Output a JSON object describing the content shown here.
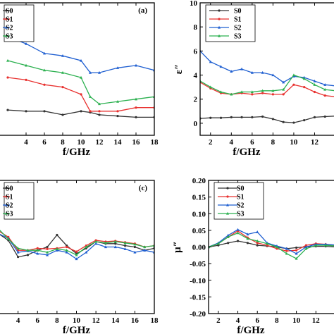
{
  "colors": {
    "S0": "#333333",
    "S1": "#e8312f",
    "S2": "#1f5fd1",
    "S3": "#2bb04f"
  },
  "chart_data": [
    {
      "id": "a",
      "type": "line",
      "panel_label": "(a)",
      "xlabel": "f/GHz",
      "ylabel": "",
      "xlim": [
        1,
        18
      ],
      "ylim": [
        4,
        9.5
      ],
      "xticks": [
        4,
        6,
        8,
        10,
        12,
        14,
        16,
        18
      ],
      "yticks": [],
      "legend_position": "top-left",
      "series": [
        {
          "name": "S0",
          "x": [
            2,
            4,
            6,
            8,
            10,
            11,
            12,
            14,
            16,
            18
          ],
          "y": [
            5.05,
            5.0,
            5.0,
            4.85,
            5.0,
            4.95,
            4.85,
            4.8,
            4.75,
            4.75
          ]
        },
        {
          "name": "S1",
          "x": [
            2,
            4,
            6,
            8,
            10,
            11,
            12,
            14,
            16,
            18
          ],
          "y": [
            6.4,
            6.3,
            6.1,
            6.0,
            5.7,
            5.0,
            5.0,
            5.0,
            5.15,
            5.15
          ]
        },
        {
          "name": "S2",
          "x": [
            2,
            4,
            6,
            8,
            10,
            11,
            12,
            14,
            16,
            18
          ],
          "y": [
            8.1,
            7.8,
            7.4,
            7.3,
            7.1,
            6.6,
            6.6,
            6.8,
            6.9,
            6.7
          ]
        },
        {
          "name": "S3",
          "x": [
            2,
            4,
            6,
            8,
            10,
            11,
            12,
            14,
            16,
            18
          ],
          "y": [
            7.1,
            6.9,
            6.7,
            6.6,
            6.4,
            5.6,
            5.3,
            5.4,
            5.5,
            5.6
          ]
        }
      ]
    },
    {
      "id": "b",
      "type": "line",
      "panel_label": "",
      "xlabel": "f/GHz",
      "ylabel": "ε″",
      "xlim": [
        1,
        14
      ],
      "ylim": [
        -1,
        10
      ],
      "xticks": [
        2,
        4,
        6,
        8,
        10,
        12
      ],
      "yticks": [
        0,
        2,
        4,
        6,
        8,
        10
      ],
      "legend_position": "top-left",
      "series": [
        {
          "name": "S0",
          "x": [
            1,
            2,
            3,
            4,
            5,
            6,
            7,
            8,
            9,
            10,
            11,
            12,
            13,
            14
          ],
          "y": [
            0.4,
            0.45,
            0.45,
            0.5,
            0.5,
            0.5,
            0.55,
            0.35,
            0.1,
            0.05,
            0.25,
            0.5,
            0.55,
            0.6
          ]
        },
        {
          "name": "S1",
          "x": [
            1,
            2,
            3,
            4,
            5,
            6,
            7,
            8,
            9,
            10,
            11,
            12,
            13,
            14
          ],
          "y": [
            3.4,
            2.9,
            2.5,
            2.4,
            2.5,
            2.4,
            2.5,
            2.4,
            2.4,
            3.2,
            3.0,
            2.6,
            2.3,
            2.2
          ]
        },
        {
          "name": "S2",
          "x": [
            1,
            2,
            3,
            4,
            5,
            6,
            7,
            8,
            9,
            10,
            11,
            12,
            13,
            14
          ],
          "y": [
            6.0,
            5.1,
            4.7,
            4.3,
            4.5,
            4.2,
            4.2,
            4.0,
            3.4,
            3.9,
            3.8,
            3.5,
            3.2,
            3.1
          ]
        },
        {
          "name": "S3",
          "x": [
            1,
            2,
            3,
            4,
            5,
            6,
            7,
            8,
            9,
            10,
            11,
            12,
            13,
            14
          ],
          "y": [
            3.5,
            3.0,
            2.6,
            2.4,
            2.6,
            2.6,
            2.7,
            2.7,
            2.8,
            4.0,
            3.7,
            3.2,
            2.8,
            2.7
          ]
        }
      ]
    },
    {
      "id": "c",
      "type": "line",
      "panel_label": "(c)",
      "xlabel": "f/GHz",
      "ylabel": "",
      "xlim": [
        2,
        18
      ],
      "ylim": [
        -1,
        1
      ],
      "xticks": [
        4,
        6,
        8,
        10,
        12,
        14,
        16,
        18
      ],
      "yticks": [],
      "legend_position": "top-left",
      "series": [
        {
          "name": "S0",
          "x": [
            2,
            3,
            4,
            5,
            6,
            7,
            8,
            9,
            10,
            11,
            12,
            13,
            14,
            15,
            16,
            17,
            18
          ],
          "y": [
            0.2,
            0.1,
            -0.15,
            -0.12,
            -0.05,
            0.0,
            0.18,
            0.02,
            -0.1,
            -0.02,
            0.08,
            0.05,
            0.05,
            0.02,
            0.0,
            -0.05,
            -0.02
          ]
        },
        {
          "name": "S1",
          "x": [
            2,
            3,
            4,
            5,
            6,
            7,
            8,
            9,
            10,
            11,
            12,
            13,
            14,
            15,
            16,
            17,
            18
          ],
          "y": [
            0.24,
            0.15,
            -0.05,
            -0.05,
            -0.02,
            -0.03,
            -0.02,
            0.0,
            -0.07,
            0.02,
            0.1,
            0.08,
            0.09,
            0.07,
            0.05,
            0.0,
            0.02
          ]
        },
        {
          "name": "S2",
          "x": [
            2,
            3,
            4,
            5,
            6,
            7,
            8,
            9,
            10,
            11,
            12,
            13,
            14,
            15,
            16,
            17,
            18
          ],
          "y": [
            0.2,
            0.13,
            -0.08,
            -0.06,
            -0.1,
            -0.12,
            -0.05,
            -0.08,
            -0.18,
            -0.08,
            0.05,
            0.0,
            0.0,
            -0.03,
            -0.08,
            -0.05,
            -0.08
          ]
        },
        {
          "name": "S3",
          "x": [
            2,
            3,
            4,
            5,
            6,
            7,
            8,
            9,
            10,
            11,
            12,
            13,
            14,
            15,
            16,
            17,
            18
          ],
          "y": [
            0.27,
            0.12,
            -0.02,
            -0.05,
            -0.05,
            -0.08,
            -0.03,
            -0.05,
            -0.12,
            0.0,
            0.08,
            0.06,
            0.08,
            0.06,
            0.04,
            0.0,
            0.02
          ]
        }
      ]
    },
    {
      "id": "d",
      "type": "line",
      "panel_label": "",
      "xlabel": "f/GHz",
      "ylabel": "μ″",
      "xlim": [
        1,
        14
      ],
      "ylim": [
        -0.2,
        0.2
      ],
      "xticks": [
        2,
        4,
        6,
        8,
        10,
        12
      ],
      "yticks": [
        0.2,
        0.15,
        0.1,
        0.05,
        0.0,
        -0.05,
        -0.1,
        -0.15,
        -0.2
      ],
      "ytick_labels": [
        "0.20",
        "0.15",
        "0.10",
        "0.05",
        "0.00",
        "-0.05",
        "-0.10",
        "-0.15",
        "-0.20"
      ],
      "legend_position": "top-left",
      "series": [
        {
          "name": "S0",
          "x": [
            1,
            2,
            3,
            4,
            5,
            6,
            7,
            8,
            9,
            10,
            11,
            12,
            13,
            14
          ],
          "y": [
            0.0,
            0.005,
            0.012,
            0.018,
            0.012,
            0.005,
            0.003,
            0.0,
            -0.005,
            -0.002,
            0.0,
            0.002,
            0.002,
            0.0
          ]
        },
        {
          "name": "S1",
          "x": [
            1,
            2,
            3,
            4,
            5,
            6,
            7,
            8,
            9,
            10,
            11,
            12,
            13,
            14
          ],
          "y": [
            0.0,
            0.01,
            0.03,
            0.048,
            0.028,
            0.012,
            0.005,
            -0.005,
            -0.012,
            -0.01,
            0.005,
            0.01,
            0.008,
            0.005
          ]
        },
        {
          "name": "S2",
          "x": [
            1,
            2,
            3,
            4,
            5,
            6,
            7,
            8,
            9,
            10,
            11,
            12,
            13,
            14
          ],
          "y": [
            0.0,
            0.012,
            0.035,
            0.052,
            0.038,
            0.045,
            0.012,
            0.003,
            -0.005,
            -0.02,
            0.0,
            0.008,
            0.008,
            0.006
          ]
        },
        {
          "name": "S3",
          "x": [
            1,
            2,
            3,
            4,
            5,
            6,
            7,
            8,
            9,
            10,
            11,
            12,
            13,
            14
          ],
          "y": [
            0.0,
            0.01,
            0.03,
            0.042,
            0.025,
            0.018,
            0.01,
            0.0,
            -0.02,
            -0.035,
            -0.005,
            0.005,
            0.005,
            0.003
          ]
        }
      ]
    }
  ]
}
